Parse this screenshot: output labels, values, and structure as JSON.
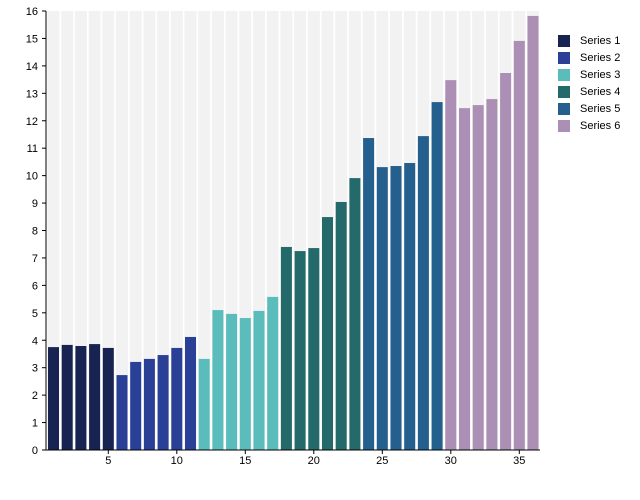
{
  "chart_data": {
    "type": "bar",
    "title": "",
    "xlabel": "",
    "ylabel": "",
    "ylim": [
      0,
      16
    ],
    "xlim": [
      0.5,
      36.5
    ],
    "x_ticks": [
      5,
      10,
      15,
      20,
      25,
      30,
      35
    ],
    "y_ticks": [
      0,
      1,
      2,
      3,
      4,
      5,
      6,
      7,
      8,
      9,
      10,
      11,
      12,
      13,
      14,
      15,
      16
    ],
    "grid": false,
    "background_stripes": true,
    "legend_position": "right",
    "series": [
      {
        "name": "Series 1",
        "color": "#172350",
        "points": [
          [
            1,
            3.75
          ],
          [
            2,
            3.83
          ],
          [
            3,
            3.79
          ],
          [
            4,
            3.86
          ],
          [
            5,
            3.72
          ]
        ]
      },
      {
        "name": "Series 2",
        "color": "#2a3f96",
        "points": [
          [
            6,
            2.73
          ],
          [
            7,
            3.21
          ],
          [
            8,
            3.32
          ],
          [
            9,
            3.46
          ],
          [
            10,
            3.72
          ],
          [
            11,
            4.12
          ]
        ]
      },
      {
        "name": "Series 3",
        "color": "#5bbcbc",
        "points": [
          [
            12,
            3.32
          ],
          [
            13,
            5.1
          ],
          [
            14,
            4.96
          ],
          [
            15,
            4.81
          ],
          [
            16,
            5.07
          ],
          [
            17,
            5.58
          ]
        ]
      },
      {
        "name": "Series 4",
        "color": "#256a6a",
        "points": [
          [
            18,
            7.4
          ],
          [
            19,
            7.25
          ],
          [
            20,
            7.36
          ],
          [
            21,
            8.49
          ],
          [
            22,
            9.04
          ],
          [
            23,
            9.91
          ]
        ]
      },
      {
        "name": "Series 5",
        "color": "#255f8e",
        "points": [
          [
            24,
            11.37
          ],
          [
            25,
            10.31
          ],
          [
            26,
            10.35
          ],
          [
            27,
            10.46
          ],
          [
            28,
            11.44
          ],
          [
            29,
            12.68
          ]
        ]
      },
      {
        "name": "Series 6",
        "color": "#ab8fb5",
        "points": [
          [
            30,
            13.48
          ],
          [
            31,
            12.46
          ],
          [
            32,
            12.57
          ],
          [
            33,
            12.79
          ],
          [
            34,
            13.74
          ],
          [
            35,
            14.91
          ],
          [
            36,
            15.82
          ]
        ]
      }
    ]
  }
}
